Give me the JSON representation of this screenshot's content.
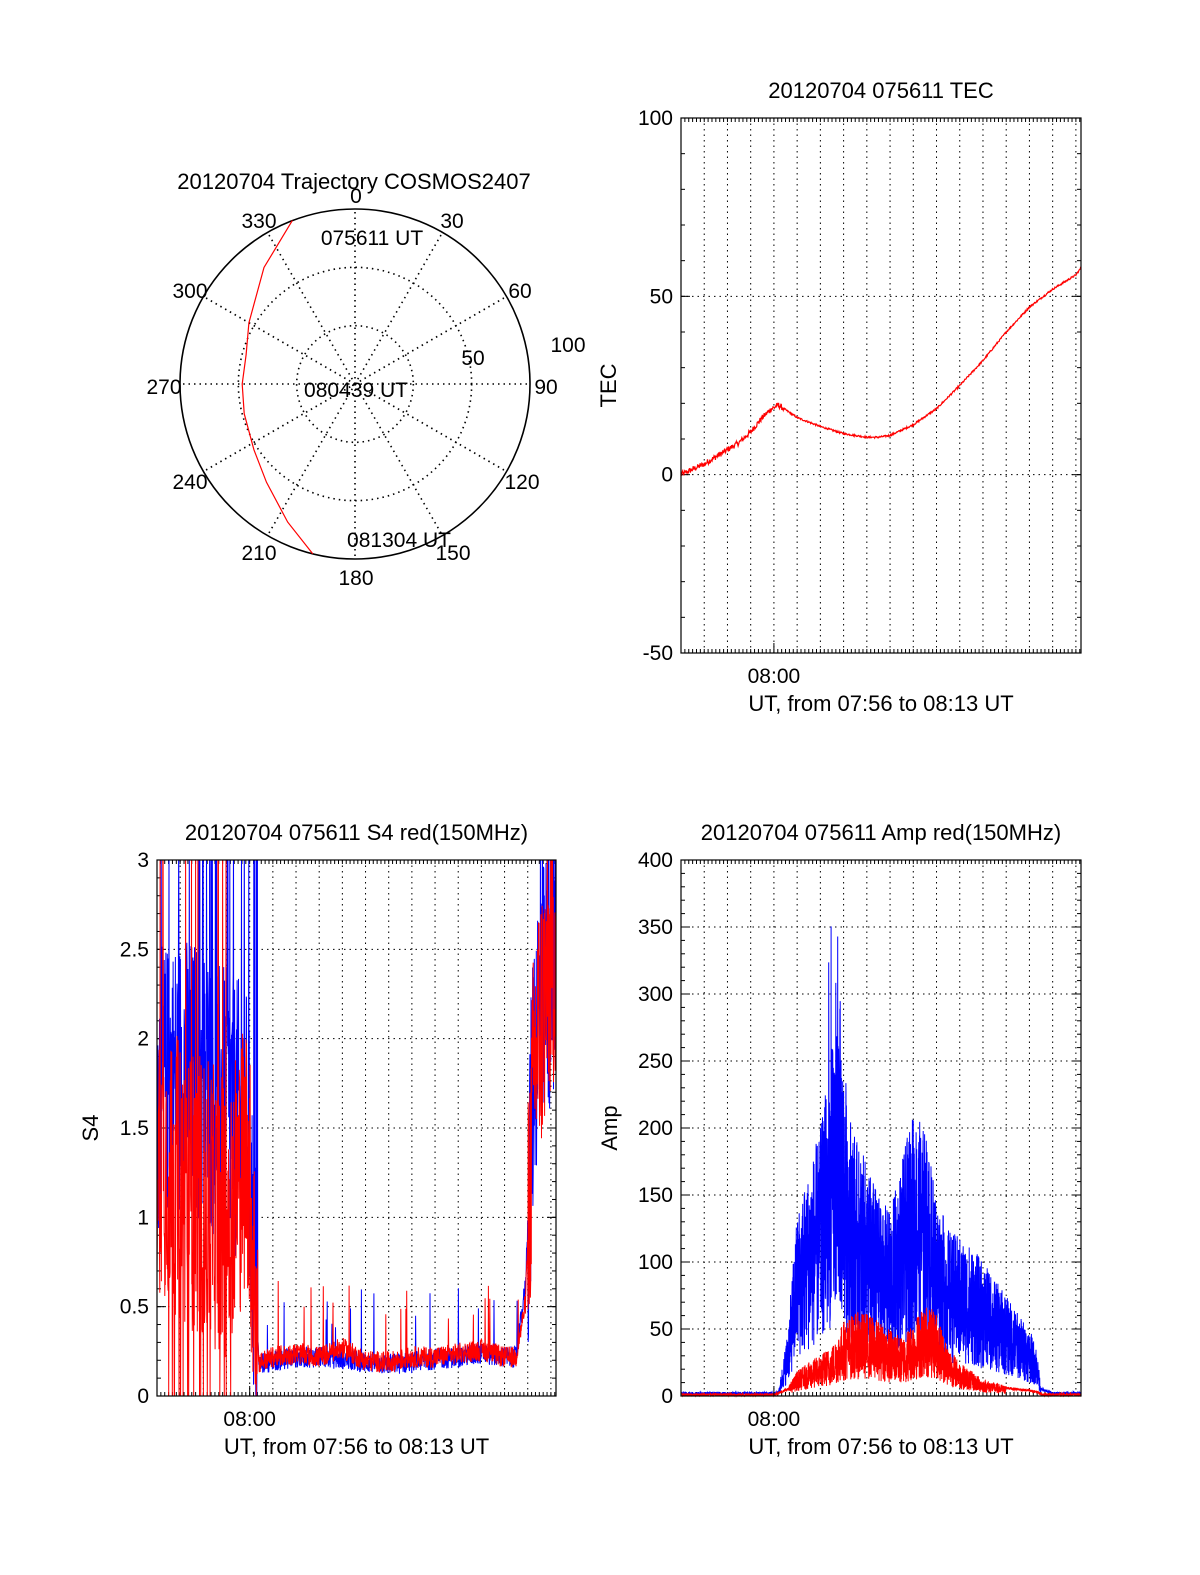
{
  "colors": {
    "red": "#ff0000",
    "blue": "#0000ff",
    "axis": "#000000",
    "grid": "#000000"
  },
  "chart_data": [
    {
      "id": "trajectory",
      "type": "scatter",
      "projection": "polar",
      "title": "20120704 Trajectory COSMOS2407",
      "azimuth_labels": [
        "0",
        "30",
        "60",
        "90",
        "120",
        "150",
        "180",
        "210",
        "240",
        "270",
        "300",
        "330"
      ],
      "radius_labels": [
        "50",
        "100"
      ],
      "time_labels": [
        "075611 UT",
        "080439 UT",
        "081304 UT"
      ],
      "series": [
        {
          "color": "#ff0000",
          "azimuth": [
            339,
            322,
            300,
            285,
            270,
            255,
            237,
            222,
            206,
            194
          ],
          "zenith": [
            90,
            76,
            63,
            58,
            58,
            59,
            62,
            68,
            79,
            90
          ]
        }
      ]
    },
    {
      "id": "tec",
      "type": "line",
      "title": "20120704 075611 TEC",
      "xlabel": "UT, from 07:56 to 08:13 UT",
      "ylabel": "TEC",
      "xlim": [
        0,
        17.22
      ],
      "ylim": [
        -50,
        100
      ],
      "yticks": [
        "-50",
        "0",
        "50",
        "100"
      ],
      "xticks": [
        {
          "t": 4,
          "label": "08:00"
        }
      ],
      "series": [
        {
          "color": "#ff0000",
          "x": [
            0,
            0.5,
            1,
            1.5,
            2,
            2.5,
            3,
            3.5,
            3.9,
            4.2,
            5,
            6,
            7,
            8,
            8.5,
            9,
            10,
            11,
            12,
            13,
            14,
            15,
            16,
            17,
            17.22
          ],
          "y": [
            0,
            1.5,
            3,
            5,
            7,
            9,
            12,
            16,
            18.5,
            19.5,
            16,
            13.5,
            11.5,
            10.5,
            10.5,
            11,
            14,
            18.5,
            25,
            32,
            40,
            47,
            52,
            56,
            58
          ]
        }
      ]
    },
    {
      "id": "s4",
      "type": "line",
      "title": "20120704 075611 S4 red(150MHz)",
      "xlabel": "UT, from 07:56 to 08:13 UT",
      "ylabel": "S4",
      "xlim": [
        0,
        17.22
      ],
      "ylim": [
        0,
        3
      ],
      "yticks": [
        "0",
        "0.5",
        "1",
        "1.5",
        "2",
        "2.5",
        "3"
      ],
      "xticks": [
        {
          "t": 4,
          "label": "08:00"
        }
      ],
      "series": [
        {
          "color": "#ff0000",
          "x": [
            0,
            1,
            2,
            3,
            3.9,
            4.4,
            5,
            6,
            7,
            8,
            9,
            10,
            11,
            12,
            13,
            14,
            15,
            15.5,
            15.9,
            16.3,
            17.22
          ],
          "y": [
            1.4,
            1.2,
            1.1,
            1.0,
            1.4,
            0.17,
            0.2,
            0.22,
            0.2,
            0.25,
            0.18,
            0.17,
            0.2,
            0.2,
            0.22,
            0.24,
            0.2,
            0.2,
            0.5,
            1.9,
            2.6
          ]
        },
        {
          "color": "#0000ff",
          "x": [
            0,
            1,
            2,
            3,
            3.9,
            4.4,
            5,
            6,
            7,
            8,
            9,
            10,
            11,
            12,
            13,
            14,
            15,
            15.5,
            15.9,
            16.3,
            17.22
          ],
          "y": [
            1.7,
            1.8,
            1.75,
            1.6,
            1.5,
            0.16,
            0.18,
            0.2,
            0.2,
            0.19,
            0.17,
            0.16,
            0.17,
            0.19,
            0.2,
            0.22,
            0.2,
            0.2,
            0.6,
            2.0,
            2.5
          ]
        }
      ]
    },
    {
      "id": "amp",
      "type": "line",
      "title": "20120704 075611 Amp red(150MHz)",
      "xlabel": "UT, from 07:56 to 08:13 UT",
      "ylabel": "Amp",
      "xlim": [
        0,
        17.22
      ],
      "ylim": [
        0,
        400
      ],
      "yticks": [
        "0",
        "50",
        "100",
        "150",
        "200",
        "250",
        "300",
        "350",
        "400"
      ],
      "xticks": [
        {
          "t": 4,
          "label": "08:00"
        }
      ],
      "series": [
        {
          "color": "#0000ff",
          "x": [
            0,
            1,
            2,
            3,
            4,
            4.2,
            4.6,
            5,
            5.5,
            6,
            6.5,
            6.8,
            7,
            7.3,
            7.6,
            8,
            8.5,
            9,
            9.5,
            10,
            10.5,
            11,
            11.5,
            12,
            12.5,
            13,
            13.5,
            14,
            14.5,
            15,
            15.3,
            15.5,
            16,
            17,
            17.22
          ],
          "y": [
            2,
            2,
            2,
            2,
            2,
            3,
            40,
            110,
            135,
            160,
            210,
            250,
            200,
            170,
            150,
            140,
            120,
            110,
            140,
            170,
            160,
            120,
            100,
            95,
            90,
            80,
            70,
            60,
            50,
            40,
            30,
            5,
            2,
            2,
            2
          ]
        },
        {
          "color": "#ff0000",
          "x": [
            0,
            1,
            2,
            3,
            4,
            4.6,
            5,
            5.5,
            6,
            6.5,
            7,
            7.5,
            8,
            8.5,
            9,
            9.5,
            10,
            10.5,
            11,
            11.5,
            12,
            12.5,
            13,
            13.5,
            14,
            14.5,
            15,
            15.3,
            15.6,
            17.22
          ],
          "y": [
            1,
            1,
            1,
            1,
            1,
            5,
            15,
            20,
            25,
            30,
            45,
            50,
            50,
            45,
            40,
            35,
            45,
            55,
            50,
            30,
            20,
            15,
            10,
            8,
            6,
            5,
            4,
            3,
            1,
            1
          ]
        }
      ]
    }
  ]
}
